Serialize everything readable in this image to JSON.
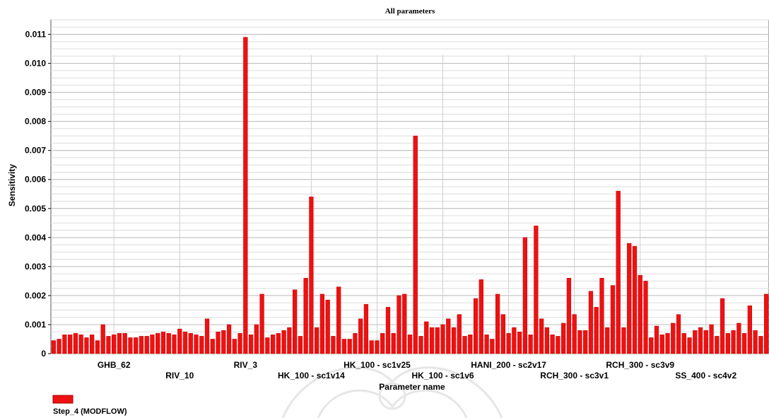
{
  "chart_data": {
    "type": "bar",
    "title": "All parameters",
    "xlabel": "Parameter name",
    "ylabel": "Sensitivity",
    "ylim": [
      0,
      0.0115
    ],
    "y_ticks": [
      "0",
      "0.001",
      "0.002",
      "0.003",
      "0.004",
      "0.005",
      "0.006",
      "0.007",
      "0.008",
      "0.009",
      "0.010",
      "0.011"
    ],
    "grid": true,
    "legend_position": "bottom-left",
    "bar_color": "#ee1111",
    "x_tick_labels": [
      {
        "label": "GHB_62",
        "index": 11,
        "row": 0
      },
      {
        "label": "RIV_10",
        "index": 23,
        "row": 1
      },
      {
        "label": "RIV_3",
        "index": 35,
        "row": 0
      },
      {
        "label": "HK_100 - sc1v14",
        "index": 47,
        "row": 1
      },
      {
        "label": "HK_100 - sc1v25",
        "index": 59,
        "row": 0
      },
      {
        "label": "HK_100 - sc1v6",
        "index": 71,
        "row": 1
      },
      {
        "label": "HANI_200 - sc2v17",
        "index": 83,
        "row": 0
      },
      {
        "label": "RCH_300 - sc3v1",
        "index": 95,
        "row": 1
      },
      {
        "label": "RCH_300 - sc3v9",
        "index": 107,
        "row": 0
      },
      {
        "label": "SS_400 - sc4v2",
        "index": 119,
        "row": 1
      }
    ],
    "series": [
      {
        "name": "Step_4 (MODFLOW)",
        "values": [
          0.00045,
          0.0005,
          0.00065,
          0.00065,
          0.0007,
          0.00065,
          0.00055,
          0.00065,
          0.00045,
          0.001,
          0.0006,
          0.00065,
          0.0007,
          0.0007,
          0.00055,
          0.00055,
          0.0006,
          0.0006,
          0.00065,
          0.0007,
          0.00075,
          0.0007,
          0.00065,
          0.00085,
          0.00075,
          0.0007,
          0.00065,
          0.0006,
          0.0012,
          0.0005,
          0.00075,
          0.0008,
          0.001,
          0.0005,
          0.0007,
          0.0109,
          0.00065,
          0.001,
          0.00205,
          0.00055,
          0.00065,
          0.0007,
          0.0008,
          0.0009,
          0.0022,
          0.0006,
          0.0026,
          0.0054,
          0.0009,
          0.00205,
          0.00185,
          0.0006,
          0.0023,
          0.0005,
          0.0005,
          0.0007,
          0.0012,
          0.0017,
          0.00045,
          0.00045,
          0.0007,
          0.0016,
          0.0007,
          0.002,
          0.00205,
          0.00065,
          0.0075,
          0.0006,
          0.0011,
          0.0009,
          0.0009,
          0.001,
          0.0012,
          0.0009,
          0.00135,
          0.0006,
          0.00065,
          0.0019,
          0.00255,
          0.00065,
          0.0005,
          0.00205,
          0.00135,
          0.0007,
          0.0009,
          0.00075,
          0.004,
          0.00065,
          0.0044,
          0.0012,
          0.0009,
          0.00065,
          0.0006,
          0.00105,
          0.0026,
          0.00135,
          0.0008,
          0.0008,
          0.00215,
          0.0016,
          0.0026,
          0.0009,
          0.00235,
          0.0056,
          0.0009,
          0.0038,
          0.0037,
          0.0027,
          0.0025,
          0.00055,
          0.00095,
          0.00065,
          0.0007,
          0.00105,
          0.00135,
          0.0007,
          0.00055,
          0.0008,
          0.0009,
          0.0008,
          0.001,
          0.0006,
          0.0019,
          0.0007,
          0.0008,
          0.00105,
          0.0007,
          0.00165,
          0.0008,
          0.0006,
          0.00205
        ]
      }
    ]
  }
}
